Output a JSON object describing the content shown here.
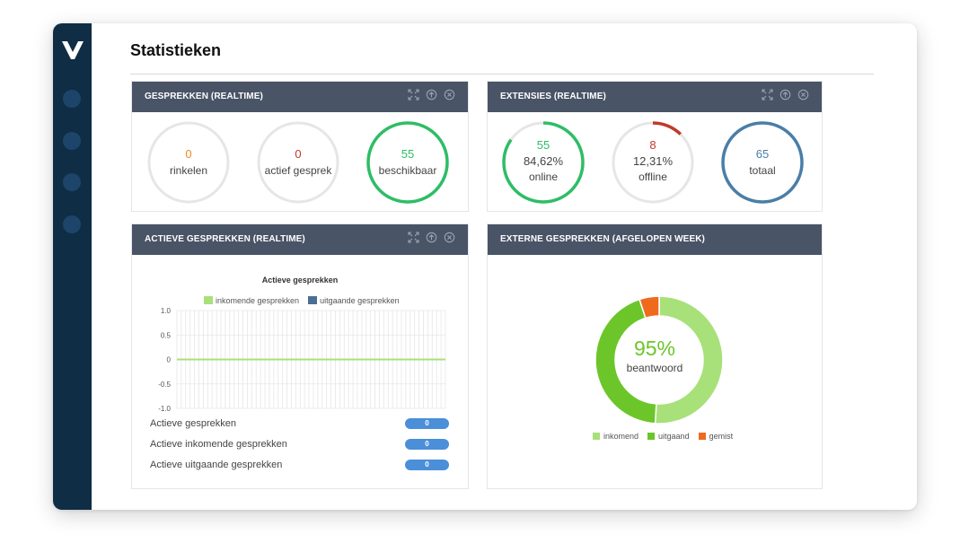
{
  "page": {
    "title": "Statistieken"
  },
  "colors": {
    "sidebar": "#0f2d45",
    "header": "#495466",
    "orange": "#f08a24",
    "red": "#c0392b",
    "green": "#2ebd66",
    "blue": "#4a7ea7",
    "grey": "#e6e6e6"
  },
  "panels": {
    "calls_rt": {
      "title": "GESPREKKEN (REALTIME)",
      "gauges": [
        {
          "value": "0",
          "label": "rinkelen",
          "color": "#f08a24",
          "fraction": 0
        },
        {
          "value": "0",
          "label": "actief gesprek",
          "color": "#c0392b",
          "fraction": 0
        },
        {
          "value": "55",
          "label": "beschikbaar",
          "color": "#2ebd66",
          "fraction": 1
        }
      ]
    },
    "ext_rt": {
      "title": "EXTENSIES (REALTIME)",
      "gauges": [
        {
          "value": "55",
          "pct": "84,62%",
          "label": "online",
          "color": "#2ebd66",
          "fraction": 0.8462
        },
        {
          "value": "8",
          "pct": "12,31%",
          "label": "offline",
          "color": "#c0392b",
          "fraction": 0.1231
        },
        {
          "value": "65",
          "label": "totaal",
          "color": "#4a7ea7",
          "fraction": 1
        }
      ]
    },
    "active_rt": {
      "title": "ACTIEVE GESPREKKEN (REALTIME)",
      "stats": [
        {
          "label": "Actieve gesprekken",
          "value": "0"
        },
        {
          "label": "Actieve inkomende gesprekken",
          "value": "0"
        },
        {
          "label": "Actieve uitgaande gesprekken",
          "value": "0"
        }
      ]
    },
    "external_week": {
      "title": "EXTERNE GESPREKKEN (AFGELOPEN WEEK)",
      "center_pct": "95%",
      "center_label": "beantwoord"
    }
  },
  "chart_data": [
    {
      "type": "line",
      "title": "Actieve gesprekken",
      "ylim": [
        -1.0,
        1.0
      ],
      "yticks": [
        "1.0",
        "0.5",
        "0",
        "-0.5",
        "-1.0"
      ],
      "grid": true,
      "legend_position": "top",
      "series": [
        {
          "name": "inkomende gesprekken",
          "color": "#a8e07a",
          "values": [
            0,
            0,
            0,
            0,
            0,
            0,
            0,
            0,
            0,
            0,
            0,
            0,
            0,
            0,
            0,
            0,
            0,
            0,
            0,
            0,
            0,
            0,
            0,
            0,
            0,
            0,
            0,
            0,
            0,
            0,
            0,
            0,
            0,
            0,
            0,
            0,
            0,
            0,
            0,
            0,
            0,
            0,
            0,
            0,
            0,
            0,
            0,
            0,
            0,
            0,
            0,
            0,
            0,
            0,
            0,
            0,
            0,
            0,
            0,
            0,
            0,
            0
          ]
        },
        {
          "name": "uitgaande gesprekken",
          "color": "#4a6f94",
          "values": [
            0,
            0,
            0,
            0,
            0,
            0,
            0,
            0,
            0,
            0,
            0,
            0,
            0,
            0,
            0,
            0,
            0,
            0,
            0,
            0,
            0,
            0,
            0,
            0,
            0,
            0,
            0,
            0,
            0,
            0,
            0,
            0,
            0,
            0,
            0,
            0,
            0,
            0,
            0,
            0,
            0,
            0,
            0,
            0,
            0,
            0,
            0,
            0,
            0,
            0,
            0,
            0,
            0,
            0,
            0,
            0,
            0,
            0,
            0,
            0,
            0,
            0
          ]
        }
      ]
    },
    {
      "type": "pie",
      "title": "",
      "legend_position": "bottom",
      "categories": [
        "inkomend",
        "uitgaand",
        "gemist"
      ],
      "values": [
        51,
        44,
        5
      ],
      "colors": [
        "#a8e07a",
        "#6cc62a",
        "#f06a1e"
      ]
    }
  ]
}
